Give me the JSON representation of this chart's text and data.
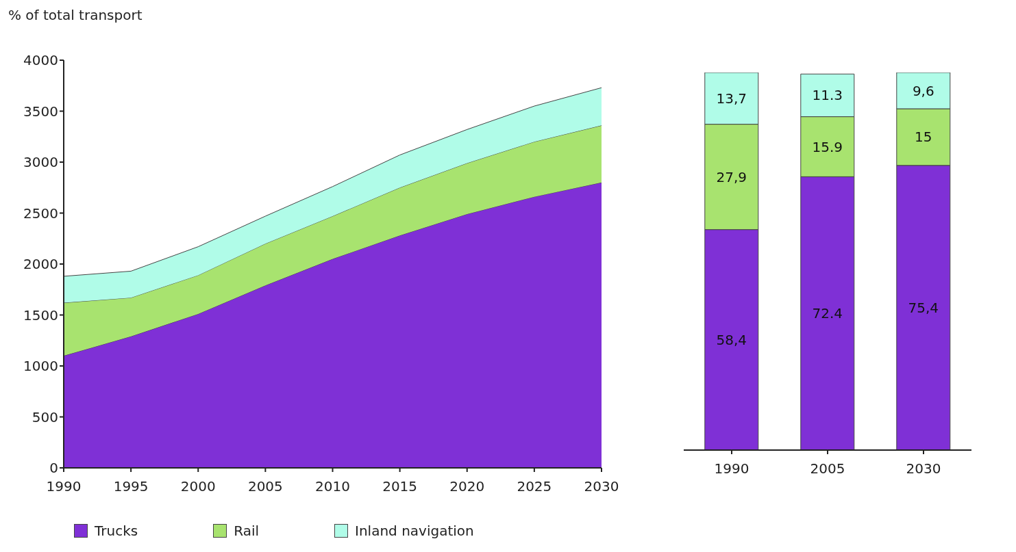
{
  "chart_data": [
    {
      "type": "area",
      "ylabel": "% of total transport",
      "stacked": true,
      "x": [
        1990,
        1995,
        2000,
        2005,
        2010,
        2015,
        2020,
        2025,
        2030
      ],
      "xlim": [
        1990,
        2030
      ],
      "xticks": [
        1990,
        1995,
        2000,
        2005,
        2010,
        2015,
        2020,
        2025,
        2030
      ],
      "ylim": [
        0,
        4000
      ],
      "yticks": [
        0,
        500,
        1000,
        1500,
        2000,
        2500,
        3000,
        3500,
        4000
      ],
      "grid": false,
      "legend": "bottom left",
      "marker": "none",
      "series": [
        {
          "name": "Trucks",
          "color": "#7f30d6",
          "values": [
            1100,
            1290,
            1510,
            1790,
            2050,
            2280,
            2490,
            2660,
            2800
          ]
        },
        {
          "name": "Rail",
          "color": "#a8e36f",
          "values": [
            520,
            380,
            380,
            410,
            420,
            470,
            500,
            540,
            560
          ]
        },
        {
          "name": "Inland navigation",
          "color": "#b0fce8",
          "values": [
            260,
            260,
            280,
            270,
            290,
            320,
            330,
            350,
            370
          ]
        }
      ]
    },
    {
      "type": "bar",
      "stacked": true,
      "categories": [
        "1990",
        "2005",
        "2030"
      ],
      "series": [
        {
          "color": "#7f30d6",
          "values": [
            58.4,
            72.4,
            75.4
          ],
          "value_labels": [
            "58,4",
            "72.4",
            "75,4"
          ]
        },
        {
          "color": "#a8e36f",
          "values": [
            27.9,
            15.9,
            15
          ],
          "value_labels": [
            "27,9",
            "15.9",
            "15"
          ]
        },
        {
          "color": "#b0fce8",
          "values": [
            13.7,
            11.3,
            9.6
          ],
          "value_labels": [
            "13,7",
            "11.3",
            "9,6"
          ]
        }
      ]
    }
  ]
}
